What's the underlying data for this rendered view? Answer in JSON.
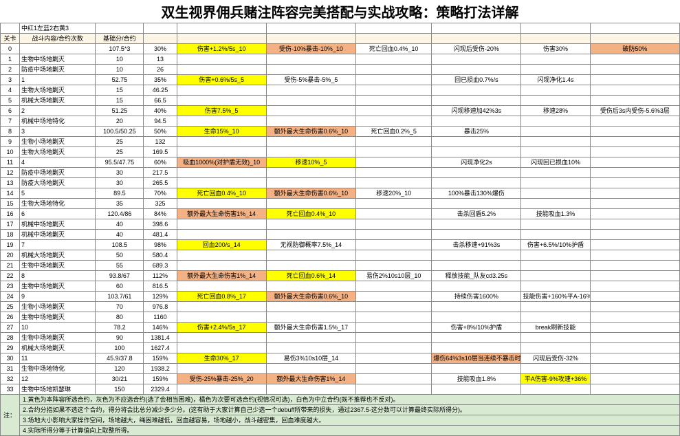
{
  "title": "双生视界佣兵赌注阵容完美搭配与实战攻略：策略打法详解",
  "legend_text": "中红1左蓝2右黄3",
  "headers": {
    "c0": "关卡",
    "c1": "战斗内容/合约次数",
    "c2": "基础分/合约",
    "c3": "",
    "c4": "",
    "c5": "",
    "c6": "",
    "c7": "",
    "c8": "",
    "c9": ""
  },
  "rows": [
    {
      "k": "0",
      "c1": "",
      "c2": "107.5*3",
      "c3": "30%",
      "c4": "伤害+1.2%/5s_10",
      "c4c": "yellow",
      "c5": "受伤-10%暴击-10%_10",
      "c5c": "orange",
      "c6": "死亡回血0.4%_10",
      "c7": "闪现后受伤-20%",
      "c8": "伤害30%",
      "c9": "破防50%",
      "c9c": "orange"
    },
    {
      "k": "1",
      "c1": "生物中场地剿灭",
      "c2": "10",
      "c3": "13"
    },
    {
      "k": "2",
      "c1": "防疫中场地剿灭",
      "c2": "10",
      "c3": "26"
    },
    {
      "k": "3",
      "c1": "1",
      "c2": "52.75",
      "c3": "35%",
      "c4": "伤害+0.6%/5s_5",
      "c4c": "yellow",
      "c5": "受伤-5%暴击-5%_5",
      "c7": "回已损血0.7%/s",
      "c8": "闪现净化1.4s"
    },
    {
      "k": "4",
      "c1": "生物大场地剿灭",
      "c2": "15",
      "c3": "46.25"
    },
    {
      "k": "5",
      "c1": "机械大场地剿灭",
      "c2": "15",
      "c3": "66.5"
    },
    {
      "k": "6",
      "c1": "2",
      "c2": "51.25",
      "c3": "40%",
      "c4": "伤害7.5%_5",
      "c4c": "yellow",
      "c7": "闪现移速加42%3s",
      "c8": "移速28%",
      "c9": "受伤后3s内受伤-5.6%3层"
    },
    {
      "k": "7",
      "c1": "机械中场地特化",
      "c2": "20",
      "c3": "94.5"
    },
    {
      "k": "8",
      "c1": "3",
      "c2": "100.5/50.25",
      "c3": "50%",
      "c4": "生命15%_10",
      "c4c": "yellow",
      "c5": "额外最大生命伤害0.6%_10",
      "c5c": "orange",
      "c6": "死亡回血0.2%_5",
      "c7": "暴击25%"
    },
    {
      "k": "9",
      "c1": "生物小场地剿灭",
      "c2": "25",
      "c3": "132"
    },
    {
      "k": "10",
      "c1": "生物大场地剿灭",
      "c2": "25",
      "c3": "169.5"
    },
    {
      "k": "11",
      "c1": "4",
      "c2": "95.5/47.75",
      "c3": "60%",
      "c4": "吸血1000%(对护盾无效)_10",
      "c4c": "orange",
      "c5": "移速10%_5",
      "c5c": "yellow",
      "c7": "闪现净化2s",
      "c8": "闪现回已损血10%"
    },
    {
      "k": "12",
      "c1": "防疫中场地剿灭",
      "c2": "30",
      "c3": "217.5"
    },
    {
      "k": "13",
      "c1": "防疫大场地剿灭",
      "c2": "30",
      "c3": "265.5"
    },
    {
      "k": "14",
      "c1": "5",
      "c2": "89.5",
      "c3": "70%",
      "c4": "死亡回血0.4%_10",
      "c4c": "yellow",
      "c5": "额外最大生命伤害0.6%_10",
      "c5c": "orange",
      "c6": "移速20%_10",
      "c7": "100%暴击130%爆伤"
    },
    {
      "k": "15",
      "c1": "生物大场地特化",
      "c2": "35",
      "c3": "325"
    },
    {
      "k": "16",
      "c1": "6",
      "c2": "120.4/86",
      "c3": "84%",
      "c4": "额外最大生命伤害1%_14",
      "c4c": "orange",
      "c5": "死亡回血0.4%_10",
      "c5c": "yellow",
      "c7": "击杀回盾5.2%",
      "c8": "技能吸血1.3%"
    },
    {
      "k": "17",
      "c1": "机械中场地剿灭",
      "c2": "40",
      "c3": "398.6"
    },
    {
      "k": "18",
      "c1": "机械中场地剿灭",
      "c2": "40",
      "c3": "481.4"
    },
    {
      "k": "19",
      "c1": "7",
      "c2": "108.5",
      "c3": "98%",
      "c4": "回血200/s_14",
      "c4c": "yellow",
      "c5": "无视防御概率7.5%_14",
      "c7": "击杀移速+91%3s",
      "c8": "伤害+6.5%/10%护盾"
    },
    {
      "k": "20",
      "c1": "机械大场地剿灭",
      "c2": "50",
      "c3": "580.4"
    },
    {
      "k": "21",
      "c1": "生物中场地剿灭",
      "c2": "55",
      "c3": "689.3"
    },
    {
      "k": "22",
      "c1": "8",
      "c2": "93.8/67",
      "c3": "112%",
      "c4": "额外最大生命伤害1%_14",
      "c4c": "orange",
      "c5": "死亡回血0.6%_14",
      "c5c": "yellow",
      "c6": "易伤2%10s10层_10",
      "c7": "释放技能_队友cd3.25s"
    },
    {
      "k": "23",
      "c1": "生物中场地剿灭",
      "c2": "60",
      "c3": "816.5"
    },
    {
      "k": "24",
      "c1": "9",
      "c2": "103.7/61",
      "c3": "129%",
      "c4": "死亡回血0.8%_17",
      "c4c": "yellow",
      "c5": "额外最大生命伤害0.6%_10",
      "c5c": "orange",
      "c7": "持续伤害1600%",
      "c8": "技能伤害+160%平A-16%"
    },
    {
      "k": "25",
      "c1": "生物小场地剿灭",
      "c2": "70",
      "c3": "976.8"
    },
    {
      "k": "26",
      "c1": "生物中场地剿灭",
      "c2": "80",
      "c3": "1160"
    },
    {
      "k": "27",
      "c1": "10",
      "c2": "78.2",
      "c3": "146%",
      "c4": "伤害+2.4%/5s_17",
      "c4c": "yellow",
      "c5": "额外最大生命伤害1.5%_17",
      "c7": "伤害+8%/10%护盾",
      "c8": "break刷新技能"
    },
    {
      "k": "28",
      "c1": "生物中场地剿灭",
      "c2": "90",
      "c3": "1381.4"
    },
    {
      "k": "29",
      "c1": "机械大场地剿灭",
      "c2": "100",
      "c3": "1627.4"
    },
    {
      "k": "30",
      "c1": "11",
      "c2": "45.9/37.8",
      "c3": "159%",
      "c4": "生命30%_17",
      "c4c": "yellow",
      "c5": "易伤3%10s10层_14",
      "c7": "爆伤64%3s10层当连续不暴击时",
      "c7c": "orange",
      "c8": "闪现后受伤-32%"
    },
    {
      "k": "31",
      "c1": "生物中场地特化",
      "c2": "120",
      "c3": "1938.2"
    },
    {
      "k": "32",
      "c1": "12",
      "c2": "30/21",
      "c3": "159%",
      "c4": "受伤-25%暴击-25%_20",
      "c4c": "orange",
      "c5": "额外最大生命伤害1%_14",
      "c5c": "orange",
      "c7": "技能吸血1.8%",
      "c8": "平A伤害-9%攻速+36%",
      "c8c": "yellow"
    },
    {
      "k": "33",
      "c1": "生物中场地凯瑟琳",
      "c2": "150",
      "c3": "2329.4"
    }
  ],
  "notes_label": "注：",
  "notes": [
    "1.黄色为本阵容所选合约，灰色为不应选合约(选了会相当困难)，橘色为次要可选合约(视情况可选)，白色为中立合约(既不推荐也不反对)。",
    "2.合约分指如果不选这个合约，得分将会比总分减少多少分。(这有助于大家计算自己少选一个debuff所带来的损失，通过2367.5-这分数可以计算最终实际所得分)。",
    "3.场地大小影响大家操作空间，场地越大，绳困难越低，回血越容易，场地越小，战斗越密集，回血难度越大。",
    "4.实际所得分等于计算值向上取整所得。"
  ]
}
